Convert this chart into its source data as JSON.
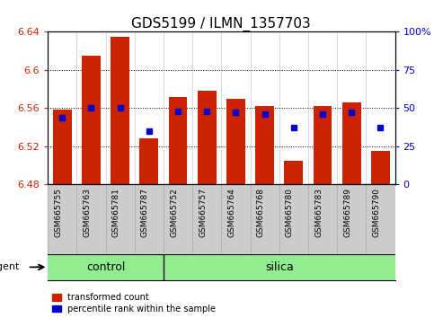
{
  "title": "GDS5199 / ILMN_1357703",
  "samples": [
    "GSM665755",
    "GSM665763",
    "GSM665781",
    "GSM665787",
    "GSM665752",
    "GSM665757",
    "GSM665764",
    "GSM665768",
    "GSM665780",
    "GSM665783",
    "GSM665789",
    "GSM665790"
  ],
  "bar_values": [
    6.558,
    6.615,
    6.635,
    6.528,
    6.572,
    6.578,
    6.57,
    6.562,
    6.505,
    6.562,
    6.566,
    6.515
  ],
  "bar_base": 6.48,
  "percentile_pct": [
    44,
    50,
    50,
    35,
    48,
    48,
    47,
    46,
    37,
    46,
    47,
    37
  ],
  "ylim_left": [
    6.48,
    6.64
  ],
  "ylim_right": [
    0,
    100
  ],
  "yticks_left": [
    6.48,
    6.52,
    6.56,
    6.6,
    6.64
  ],
  "yticks_right": [
    0,
    25,
    50,
    75,
    100
  ],
  "ytick_labels_right": [
    "0",
    "25",
    "50",
    "75",
    "100%"
  ],
  "bar_color": "#cc2200",
  "percentile_color": "#0000cc",
  "groups": [
    {
      "label": "control",
      "start": 0,
      "end": 3
    },
    {
      "label": "silica",
      "start": 4,
      "end": 11
    }
  ],
  "group_color": "#90ee90",
  "agent_label": "agent",
  "legend_items": [
    {
      "color": "#cc2200",
      "label": "transformed count"
    },
    {
      "color": "#0000cc",
      "label": "percentile rank within the sample"
    }
  ],
  "tick_label_area_color": "#cccccc",
  "title_fontsize": 11,
  "tick_fontsize": 8,
  "label_fontsize": 9
}
